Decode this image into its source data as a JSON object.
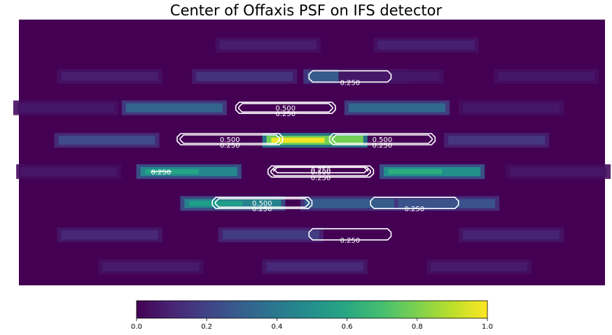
{
  "chart_data": {
    "type": "heatmap",
    "title": "Center of Offaxis PSF on IFS detector",
    "colormap": "viridis",
    "grid": false,
    "colorbar": {
      "placement": "bottom",
      "range": [
        0.0,
        1.0
      ],
      "ticks": [
        0.0,
        0.2,
        0.4,
        0.6,
        0.8,
        1.0
      ],
      "tick_labels": [
        "0.0",
        "0.2",
        "0.4",
        "0.6",
        "0.8",
        "1.0"
      ]
    },
    "contour_levels": [
      0.25,
      0.5,
      0.75
    ],
    "contour_color": "#ffffff",
    "image_extent": {
      "x": [
        0,
        100
      ],
      "y": [
        0,
        50
      ]
    },
    "spots": [
      {
        "x": 42.5,
        "y": 4.8,
        "intensity": 0.1
      },
      {
        "x": 69.5,
        "y": 4.8,
        "intensity": 0.11
      },
      {
        "x": 15.5,
        "y": 10.7,
        "intensity": 0.1
      },
      {
        "x": 38.5,
        "y": 10.7,
        "intensity": 0.18
      },
      {
        "x": 57.5,
        "y": 10.7,
        "intensity": 0.36
      },
      {
        "x": 90.0,
        "y": 10.7,
        "intensity": 0.08
      },
      {
        "x": 8.0,
        "y": 16.6,
        "intensity": 0.08
      },
      {
        "x": 26.5,
        "y": 16.6,
        "intensity": 0.4
      },
      {
        "x": 64.5,
        "y": 16.6,
        "intensity": 0.42
      },
      {
        "x": 84.0,
        "y": 16.6,
        "intensity": 0.08
      },
      {
        "x": 15.0,
        "y": 22.7,
        "intensity": 0.28
      },
      {
        "x": 50.5,
        "y": 22.7,
        "intensity": 0.98
      },
      {
        "x": 81.5,
        "y": 22.7,
        "intensity": 0.2
      },
      {
        "x": 29.0,
        "y": 28.6,
        "intensity": 0.58
      },
      {
        "x": 70.5,
        "y": 28.6,
        "intensity": 0.62
      },
      {
        "x": 8.5,
        "y": 28.6,
        "intensity": 0.07
      },
      {
        "x": 92.0,
        "y": 28.6,
        "intensity": 0.07
      },
      {
        "x": 36.5,
        "y": 34.6,
        "intensity": 0.56
      },
      {
        "x": 57.0,
        "y": 34.6,
        "intensity": 0.36
      },
      {
        "x": 73.0,
        "y": 34.6,
        "intensity": 0.32
      },
      {
        "x": 15.5,
        "y": 40.5,
        "intensity": 0.14
      },
      {
        "x": 43.0,
        "y": 40.5,
        "intensity": 0.22
      },
      {
        "x": 84.0,
        "y": 40.5,
        "intensity": 0.12
      },
      {
        "x": 50.5,
        "y": 46.5,
        "intensity": 0.14
      },
      {
        "x": 22.5,
        "y": 46.5,
        "intensity": 0.09
      },
      {
        "x": 78.5,
        "y": 46.5,
        "intensity": 0.09
      },
      {
        "x": 63.5,
        "y": 10.7,
        "intensity": 0.08
      }
    ],
    "contours": [
      {
        "level": 0.25,
        "x": [
          49.5,
          63.5
        ],
        "y": 10.7,
        "label": "0.250"
      },
      {
        "level": 0.5,
        "x": [
          37.5,
          53.5
        ],
        "y": 16.6,
        "label": "0.500"
      },
      {
        "level": 0.25,
        "x": [
          37.0,
          54.0
        ],
        "y": 16.6,
        "label": "0.250"
      },
      {
        "level": 0.5,
        "x": [
          27.5,
          44.5
        ],
        "y": 22.5,
        "label": "0.500"
      },
      {
        "level": 0.25,
        "x": [
          27.0,
          45.0
        ],
        "y": 22.5,
        "label": "0.250"
      },
      {
        "level": 0.5,
        "x": [
          53.5,
          70.5
        ],
        "y": 22.5,
        "label": "0.500"
      },
      {
        "level": 0.25,
        "x": [
          53.0,
          71.0
        ],
        "y": 22.5,
        "label": "0.250"
      },
      {
        "level": 0.25,
        "x": [
          22.5,
          26.0
        ],
        "y": 28.6,
        "label": "0.250"
      },
      {
        "level": 0.75,
        "x": [
          43.5,
          59.5
        ],
        "y": 28.3,
        "label": "0.750"
      },
      {
        "level": 0.5,
        "x": [
          43.0,
          60.0
        ],
        "y": 28.6,
        "label": "0.500"
      },
      {
        "level": 0.25,
        "x": [
          42.5,
          60.5
        ],
        "y": 28.6,
        "label": "0.250"
      },
      {
        "level": 0.5,
        "x": [
          33.5,
          49.5
        ],
        "y": 34.5,
        "label": "0.500"
      },
      {
        "level": 0.25,
        "x": [
          33.0,
          50.0
        ],
        "y": 34.5,
        "label": "0.250"
      },
      {
        "level": 0.25,
        "x": [
          60.0,
          75.0
        ],
        "y": 34.5,
        "label": "0.250"
      },
      {
        "level": 0.25,
        "x": [
          49.5,
          63.5
        ],
        "y": 40.4,
        "label": "0.250"
      }
    ]
  }
}
